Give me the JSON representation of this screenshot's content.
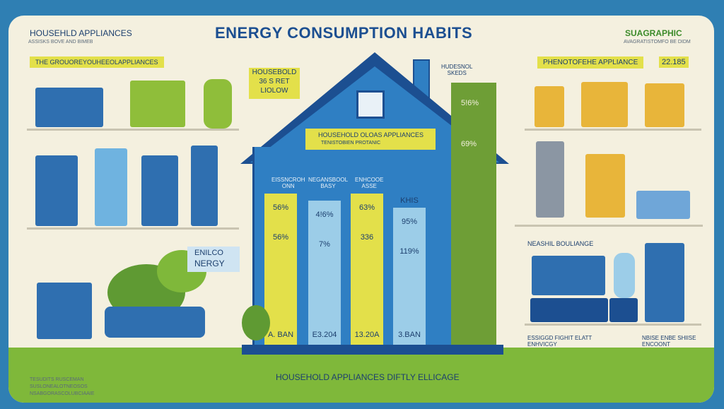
{
  "title": "ENERGY CONSUMPTION HABITS",
  "header_left": {
    "title": "HOUSEHLD APPLIANCES",
    "sub": "ASSISKS BOVE AND BIMEB"
  },
  "header_right": {
    "title": "SUAGRAPHIC",
    "sub": "AVAGRATISTOMFO BE DIDM"
  },
  "left_label": "THE GROUOREYOUHEEOLAPPLIANCES",
  "note_box": {
    "line1": "HOUSEBOLD",
    "line2": "36 S RET",
    "line3": "LIOLOW"
  },
  "right_label": {
    "text": "PHENOTOFEHE APPLIANCE",
    "value": "22.185"
  },
  "house_panel": {
    "line1": "HOUSEHOLD OLOAS APPLIANCES",
    "line2": "TENISTOBIEN PROTANIC"
  },
  "col_headers": {
    "left": "EISSNCROH\nONN",
    "mid": "NEGANSBOOL\nBASY",
    "right": "ENHCOOE\nASSE"
  },
  "tall_col": {
    "header": "HUDESNOL\nSKEDS",
    "v1": "5!6%",
    "v2": "69%"
  },
  "bars": [
    {
      "v1": "56%",
      "v2": "56%",
      "bottom": "A. BAN",
      "color": "#e3e04a"
    },
    {
      "v1": "4!6%",
      "v2": "7%",
      "bottom": "E3.204",
      "color": "#9ccde8"
    },
    {
      "v1": "63%",
      "v2": "336",
      "bottom": "13.20A",
      "color": "#e3e04a"
    },
    {
      "v1": "95%",
      "v2": "119%",
      "bottom": "3.BAN",
      "color": "#9ccde8",
      "header": "KHIS"
    }
  ],
  "energy_bubble": {
    "line1": "ENILCO",
    "line2": "NERGY"
  },
  "right_section": "NEASHIL BOULIANGE",
  "right_bottom": {
    "left": "ESSIGGD FIGHIT ELATT\nENHVICGY",
    "right": "NBISE ENBE SHIISE\nENCOONT"
  },
  "bottom_bar": "HOUSEHOLD   APPLIANCES DIFTLY ELLICAGE",
  "footer_lines": [
    "TESUDITS RUSCEMAN",
    "SUSLONEALOTNEOSOS",
    "NSABGORASCOLUBCIAAIE"
  ]
}
